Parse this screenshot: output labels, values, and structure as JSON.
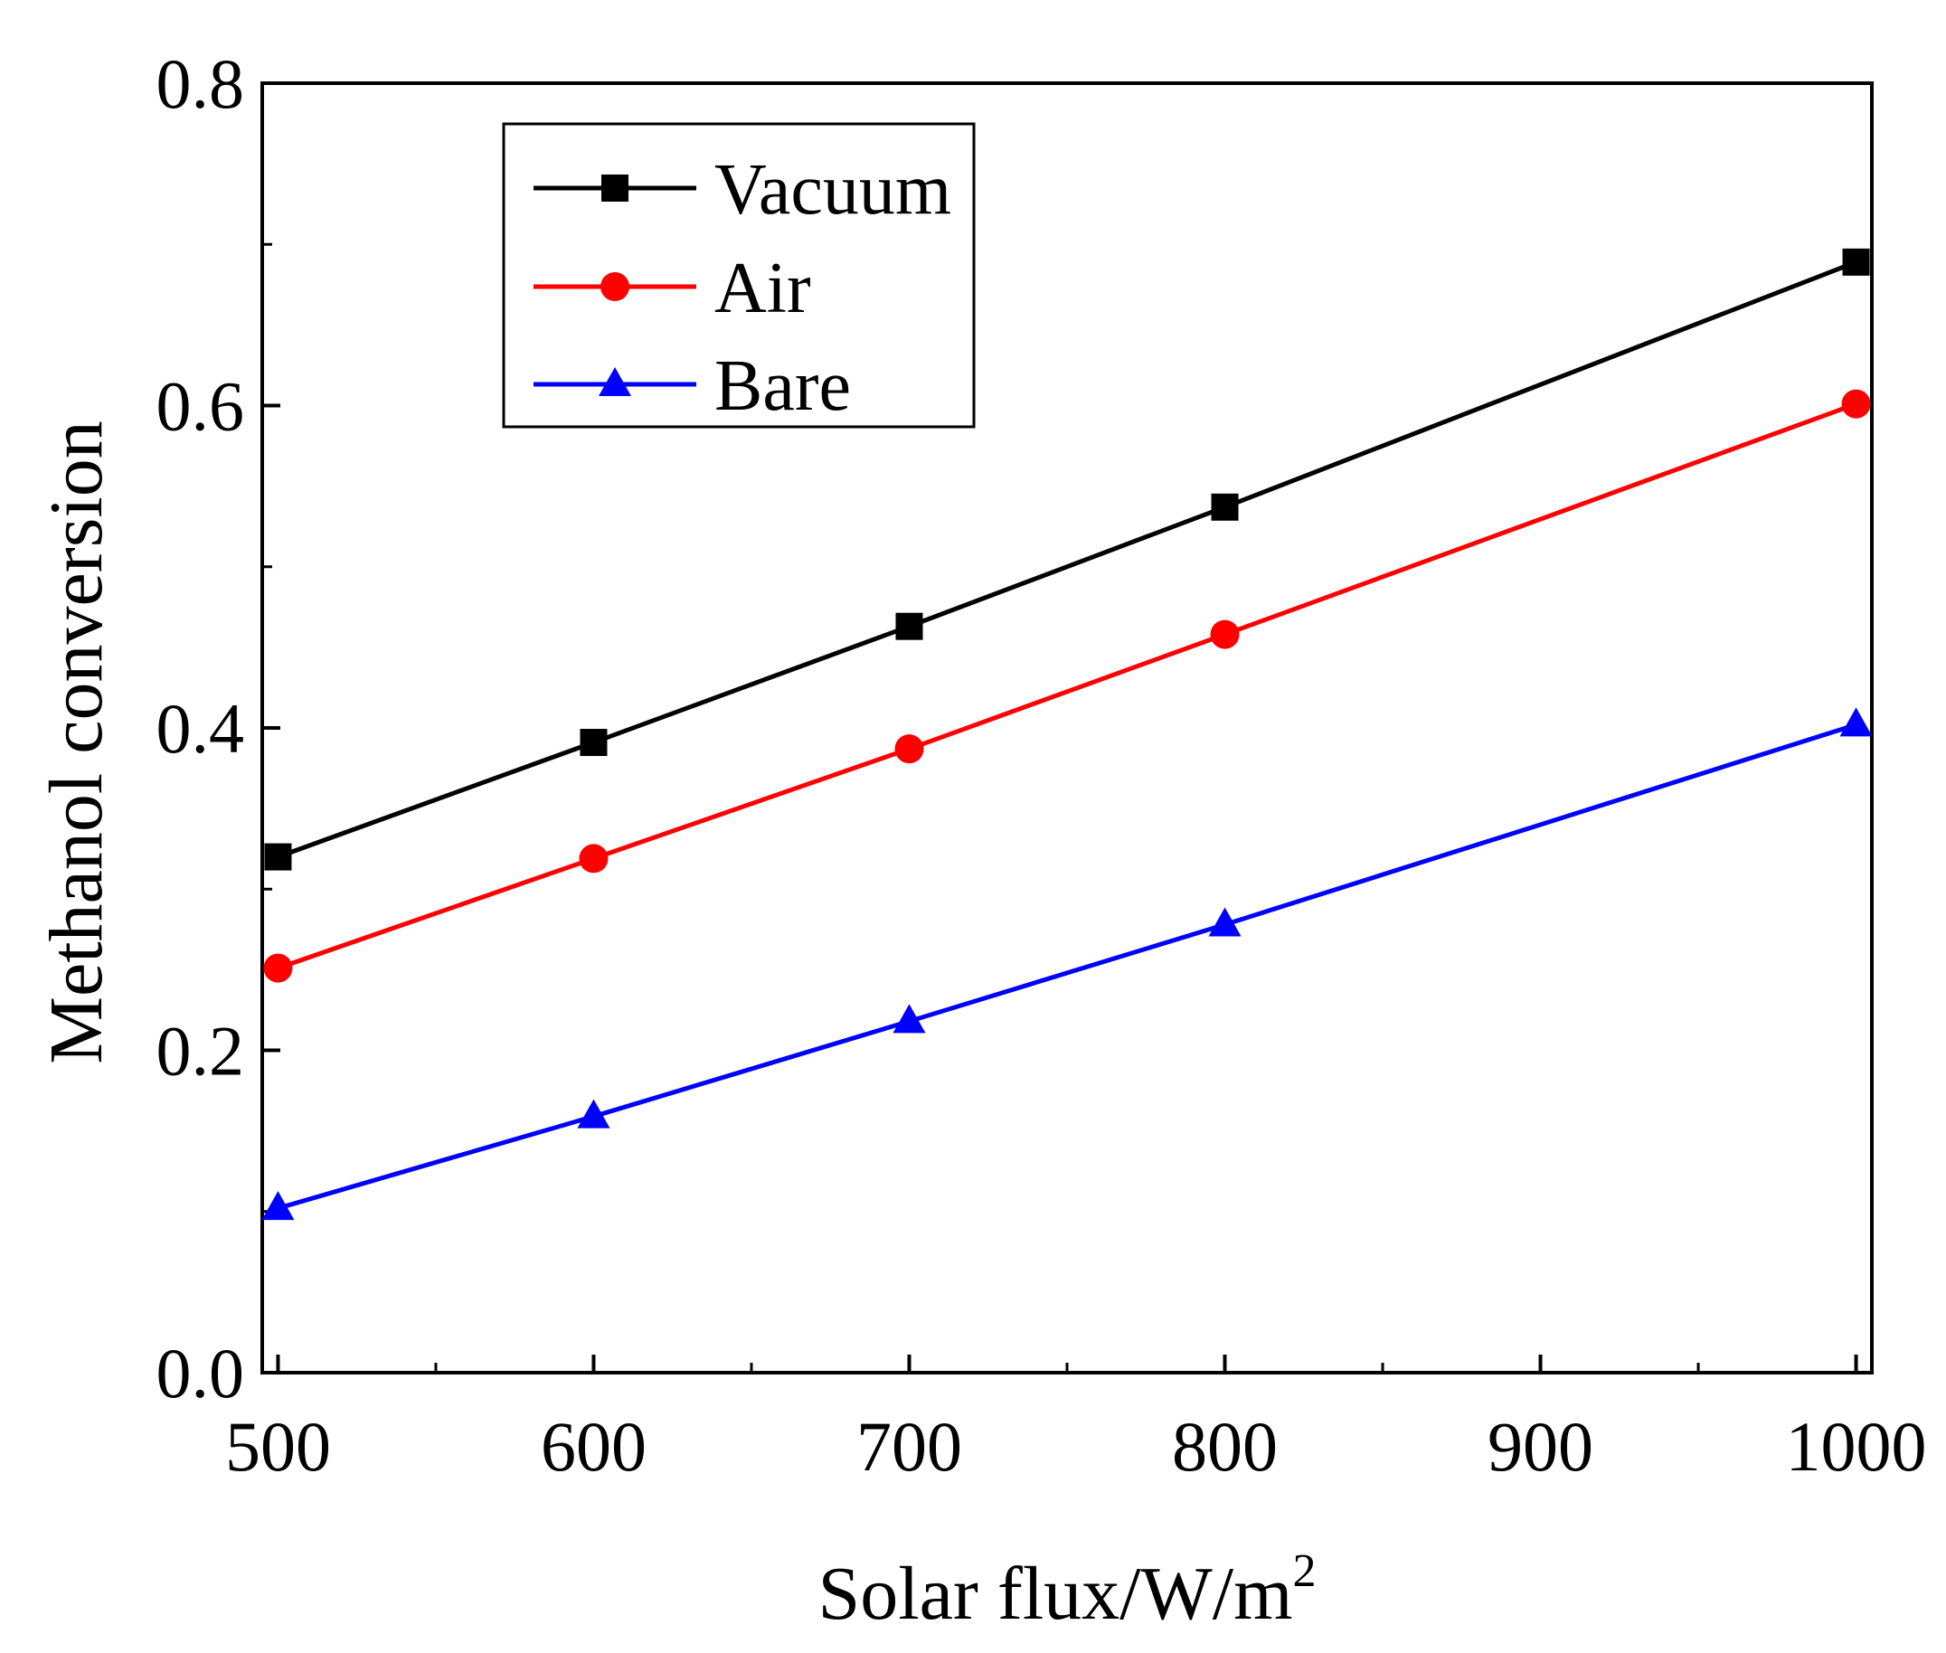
{
  "chart_data": {
    "type": "line",
    "title": "",
    "xlabel": "Solar flux/W/m",
    "xlabel_superscript": "2",
    "ylabel": "Methanol conversion",
    "xlim": [
      495,
      1005
    ],
    "ylim": [
      0.0,
      0.8
    ],
    "x": [
      500,
      600,
      700,
      800,
      1000
    ],
    "xticks": [
      500,
      600,
      700,
      800,
      900,
      1000
    ],
    "xtick_labels": [
      "500",
      "600",
      "700",
      "800",
      "900",
      "1000"
    ],
    "xminor": [
      550,
      650,
      750,
      850,
      950
    ],
    "yticks": [
      0.0,
      0.2,
      0.4,
      0.6,
      0.8
    ],
    "ytick_labels": [
      "0.0",
      "0.2",
      "0.4",
      "0.6",
      "0.8"
    ],
    "yminor": [
      0.1,
      0.3,
      0.5,
      0.7
    ],
    "grid": false,
    "legend_position": "top-left",
    "series": [
      {
        "name": "Vacuum",
        "marker": "square",
        "color": "#000000",
        "values": [
          0.32,
          0.391,
          0.463,
          0.537,
          0.689
        ]
      },
      {
        "name": "Air",
        "marker": "circle",
        "color": "#ff0000",
        "values": [
          0.251,
          0.319,
          0.387,
          0.458,
          0.601
        ]
      },
      {
        "name": "Bare",
        "marker": "triangle",
        "color": "#0000ff",
        "values": [
          0.102,
          0.159,
          0.218,
          0.278,
          0.402
        ]
      }
    ]
  }
}
